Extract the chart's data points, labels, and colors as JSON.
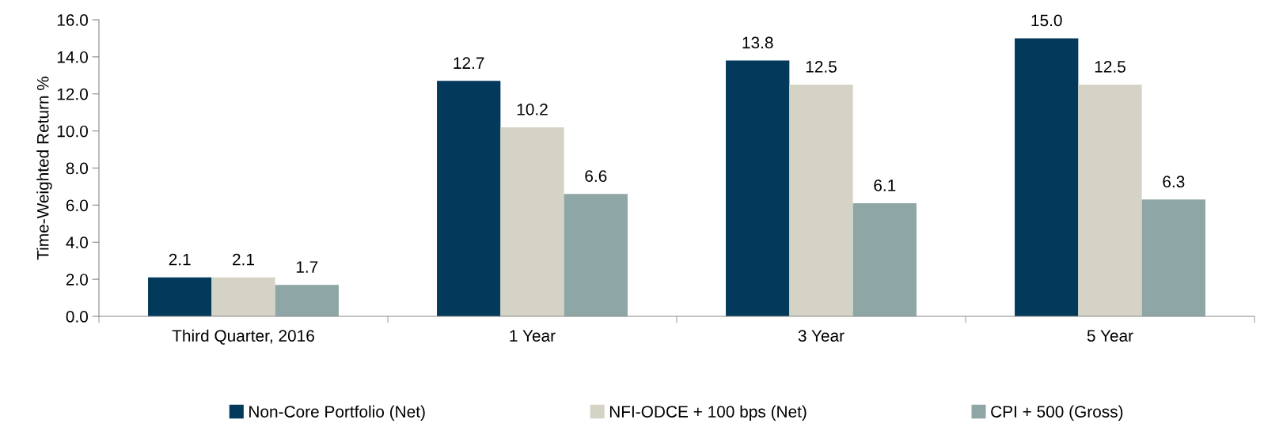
{
  "chart_data": {
    "type": "bar",
    "ylabel": "Time-Weighted Return %",
    "categories": [
      "Third Quarter, 2016",
      "1 Year",
      "3 Year",
      "5 Year"
    ],
    "series": [
      {
        "name": "Non-Core Portfolio (Net)",
        "color": "#03395a",
        "values": [
          2.1,
          12.7,
          13.8,
          15.0
        ],
        "value_labels": [
          "2.1",
          "12.7",
          "13.8",
          "15.0"
        ]
      },
      {
        "name": "NFI-ODCE + 100 bps (Net)",
        "color": "#d5d3c6",
        "values": [
          2.1,
          10.2,
          12.5,
          12.5
        ],
        "value_labels": [
          "2.1",
          "10.2",
          "12.5",
          "12.5"
        ]
      },
      {
        "name": "CPI + 500 (Gross)",
        "color": "#8ea6a6",
        "values": [
          1.7,
          6.6,
          6.1,
          6.3
        ],
        "value_labels": [
          "1.7",
          "6.6",
          "6.1",
          "6.3"
        ]
      }
    ],
    "ylim": [
      0,
      16
    ],
    "yticks": [
      {
        "value": 0,
        "label": "0.0"
      },
      {
        "value": 2,
        "label": "2.0"
      },
      {
        "value": 4,
        "label": "4.0"
      },
      {
        "value": 6,
        "label": "6.0"
      },
      {
        "value": 8,
        "label": "8.0"
      },
      {
        "value": 10,
        "label": "10.0"
      },
      {
        "value": 12,
        "label": "12.0"
      },
      {
        "value": 14,
        "label": "14.0"
      },
      {
        "value": 16,
        "label": "16.0"
      }
    ],
    "grid": false,
    "legend": "bottom"
  }
}
